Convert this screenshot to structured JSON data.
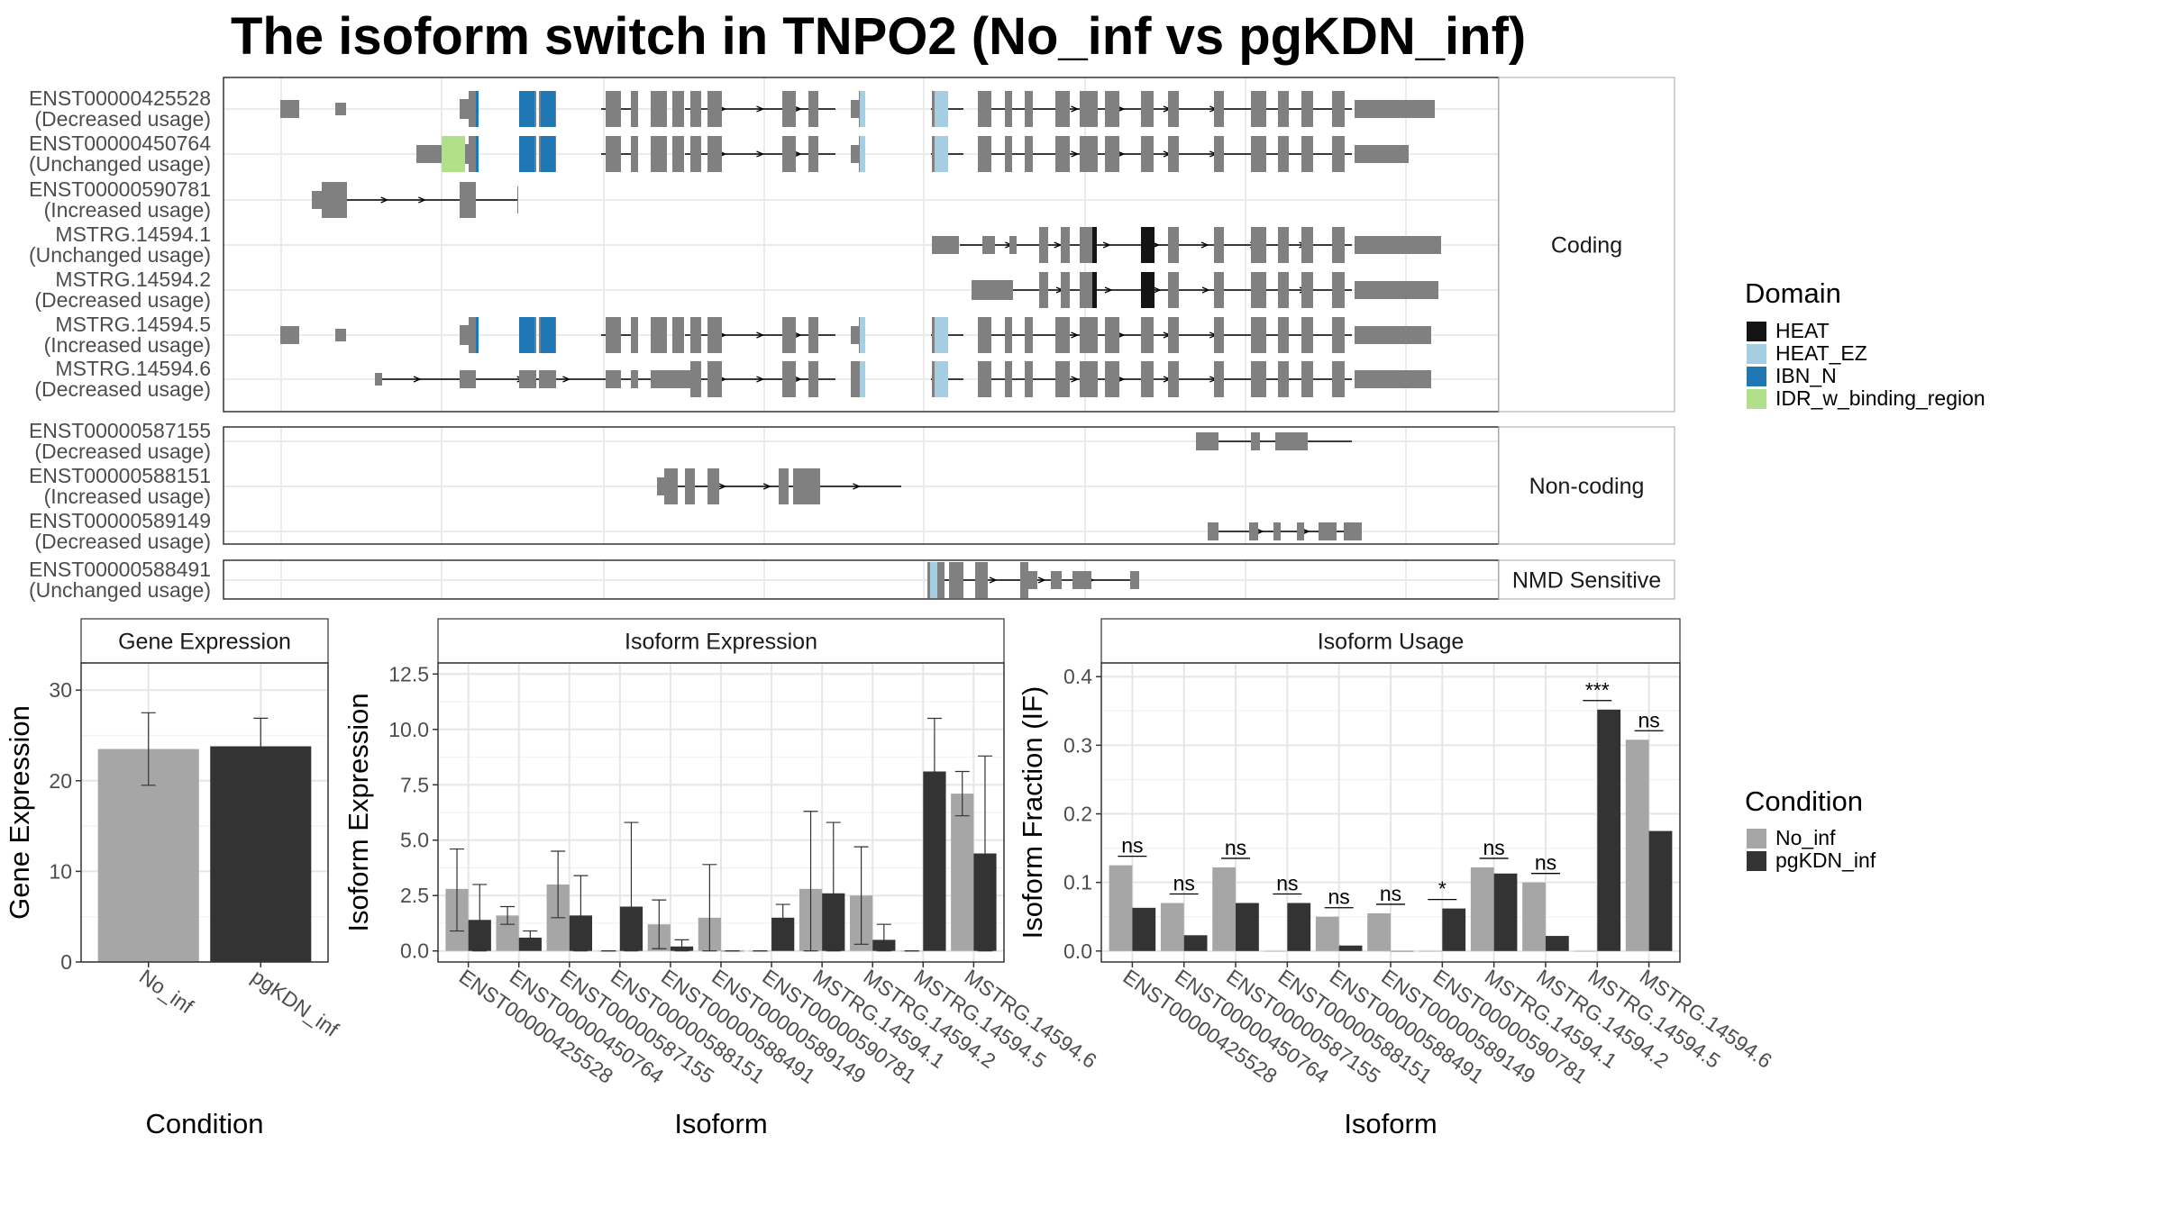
{
  "title": "The isoform switch in TNPO2 (No_inf vs pgKDN_inf)",
  "colors": {
    "HEAT": "#141414",
    "HEAT_EZ": "#a6cee3",
    "IBN_N": "#1f78b4",
    "IDR_w_binding_region": "#b2df8a",
    "exon": "#808080",
    "No_inf": "#a6a6a6",
    "pgKDN_inf": "#333333"
  },
  "structure": {
    "sections": [
      {
        "name": "Coding",
        "tracks": [
          {
            "id": "ENST00000425528",
            "usage": "(Decreased usage)"
          },
          {
            "id": "ENST00000450764",
            "usage": "(Unchanged usage)"
          },
          {
            "id": "ENST00000590781",
            "usage": "(Increased usage)"
          },
          {
            "id": "MSTRG.14594.1",
            "usage": "(Unchanged usage)"
          },
          {
            "id": "MSTRG.14594.2",
            "usage": "(Decreased usage)"
          },
          {
            "id": "MSTRG.14594.5",
            "usage": "(Increased usage)"
          },
          {
            "id": "MSTRG.14594.6",
            "usage": "(Decreased usage)"
          }
        ]
      },
      {
        "name": "Non-coding",
        "tracks": [
          {
            "id": "ENST00000587155",
            "usage": "(Decreased usage)"
          },
          {
            "id": "ENST00000588151",
            "usage": "(Increased usage)"
          },
          {
            "id": "ENST00000589149",
            "usage": "(Decreased usage)"
          }
        ]
      },
      {
        "name": "NMD Sensitive",
        "tracks": [
          {
            "id": "ENST00000588491",
            "usage": "(Unchanged usage)"
          }
        ]
      }
    ]
  },
  "legend_domain": {
    "title": "Domain",
    "items": [
      "HEAT",
      "HEAT_EZ",
      "IBN_N",
      "IDR_w_binding_region"
    ]
  },
  "legend_condition": {
    "title": "Condition",
    "items": [
      "No_inf",
      "pgKDN_inf"
    ]
  },
  "chart_data": [
    {
      "type": "bar",
      "panel_title": "Gene Expression",
      "categories": [
        "No_inf",
        "pgKDN_inf"
      ],
      "values": [
        23.5,
        23.8
      ],
      "errors": [
        [
          19.5,
          27.5
        ],
        [
          20.8,
          26.9
        ]
      ],
      "ylim": [
        0,
        33
      ],
      "yticks": [
        0,
        10,
        20,
        30
      ],
      "ylabel": "Gene Expression",
      "xlabel": "Condition"
    },
    {
      "type": "bar",
      "panel_title": "Isoform Expression",
      "categories": [
        "ENST00000425528",
        "ENST00000450764",
        "ENST00000587155",
        "ENST00000588151",
        "ENST00000588491",
        "ENST00000589149",
        "ENST00000590781",
        "MSTRG.14594.1",
        "MSTRG.14594.2",
        "MSTRG.14594.5",
        "MSTRG.14594.6"
      ],
      "series": [
        {
          "name": "No_inf",
          "values": [
            2.8,
            1.6,
            3.0,
            0.0,
            1.2,
            1.5,
            0.0,
            2.8,
            2.5,
            0.0,
            7.1
          ],
          "errors": [
            [
              0.9,
              4.6
            ],
            [
              1.2,
              2.0
            ],
            [
              1.5,
              4.5
            ],
            [
              0,
              0
            ],
            [
              0.1,
              2.3
            ],
            [
              0,
              3.9
            ],
            [
              0,
              0
            ],
            [
              0,
              6.3
            ],
            [
              0.3,
              4.7
            ],
            [
              0,
              0
            ],
            [
              6.1,
              8.1
            ]
          ]
        },
        {
          "name": "pgKDN_inf",
          "values": [
            1.4,
            0.6,
            1.6,
            2.0,
            0.2,
            0.0,
            1.5,
            2.6,
            0.5,
            8.1,
            4.4
          ],
          "errors": [
            [
              0,
              3.0
            ],
            [
              0.3,
              0.9
            ],
            [
              0,
              3.4
            ],
            [
              0,
              5.8
            ],
            [
              0,
              0.5
            ],
            [
              0,
              0
            ],
            [
              0.9,
              2.1
            ],
            [
              0,
              5.8
            ],
            [
              0,
              1.2
            ],
            [
              5.7,
              10.5
            ],
            [
              0,
              8.8
            ]
          ]
        }
      ],
      "ylim": [
        -0.5,
        13.0
      ],
      "yticks": [
        0.0,
        2.5,
        5.0,
        7.5,
        10.0,
        12.5
      ],
      "ytick_labels": [
        "0.0",
        "2.5",
        "5.0",
        "7.5",
        "10.0",
        "12.5"
      ],
      "ylabel": "Isoform Expression",
      "xlabel": "Isoform"
    },
    {
      "type": "bar",
      "panel_title": "Isoform Usage",
      "categories": [
        "ENST00000425528",
        "ENST00000450764",
        "ENST00000587155",
        "ENST00000588151",
        "ENST00000588491",
        "ENST00000589149",
        "ENST00000590781",
        "MSTRG.14594.1",
        "MSTRG.14594.2",
        "MSTRG.14594.5",
        "MSTRG.14594.6"
      ],
      "series": [
        {
          "name": "No_inf",
          "values": [
            0.125,
            0.07,
            0.122,
            0.0,
            0.05,
            0.055,
            0.0,
            0.122,
            0.1,
            0.0,
            0.308
          ]
        },
        {
          "name": "pgKDN_inf",
          "values": [
            0.063,
            0.023,
            0.07,
            0.07,
            0.008,
            0.0,
            0.062,
            0.113,
            0.022,
            0.352,
            0.175
          ]
        }
      ],
      "significance": [
        "ns",
        "ns",
        "ns",
        "ns",
        "ns",
        "ns",
        "*",
        "ns",
        "ns",
        "***",
        "ns"
      ],
      "ylim": [
        -0.016,
        0.42
      ],
      "yticks": [
        0.0,
        0.1,
        0.2,
        0.3,
        0.4
      ],
      "ytick_labels": [
        "0.0",
        "0.1",
        "0.2",
        "0.3",
        "0.4"
      ],
      "ylabel": "Isoform Fraction (IF)",
      "xlabel": "Isoform"
    }
  ]
}
